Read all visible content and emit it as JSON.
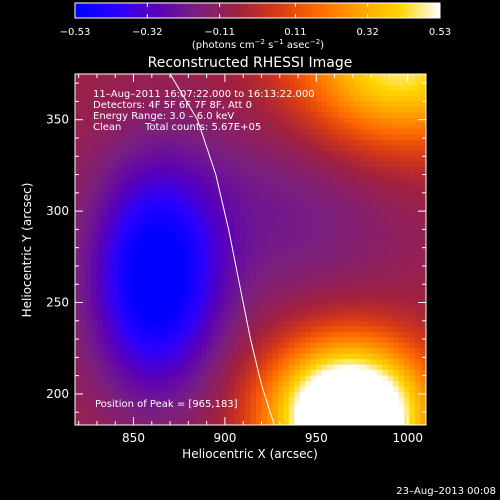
{
  "chart_data": {
    "type": "heatmap",
    "title": "Reconstructed RHESSI Image",
    "xlabel": "Heliocentric X (arcsec)",
    "ylabel": "Heliocentric Y (arcsec)",
    "xlim": [
      818,
      1010
    ],
    "ylim": [
      183,
      375
    ],
    "x_ticks": [
      850,
      900,
      950,
      1000
    ],
    "y_ticks": [
      200,
      250,
      300,
      350
    ],
    "colorbar": {
      "ticks": [
        -0.53,
        -0.32,
        -0.11,
        0.11,
        0.32,
        0.53
      ],
      "tick_labels": [
        "−0.53",
        "−0.32",
        "−0.11",
        "0.11",
        "0.32",
        "0.53"
      ],
      "label_parts": [
        "(photons cm",
        "−2",
        " s",
        "−1",
        " asec",
        "−2",
        ")"
      ],
      "stops": [
        "#0000ff",
        "#2a00ff",
        "#5a00b8",
        "#7a1f7f",
        "#a02040",
        "#d83a14",
        "#ff6a00",
        "#ffa200",
        "#ffd500",
        "#ffffff"
      ]
    },
    "annotations": [
      "11–Aug–2011 16:07:22.000 to 16:13:22.000",
      "Detectors: 4F 5F 6F 7F 8F, Att 0",
      "Energy Range: 3.0 – 6.0 keV",
      "Clean",
      "Total counts: 5.67E+05",
      "Position of Peak = [965,183]"
    ],
    "limb_curve": [
      [
        870,
        375
      ],
      [
        885,
        350
      ],
      [
        895,
        320
      ],
      [
        902,
        290
      ],
      [
        908,
        260
      ],
      [
        914,
        230
      ],
      [
        920,
        205
      ],
      [
        927,
        183
      ]
    ],
    "sources": [
      {
        "x": 862,
        "y": 262,
        "amplitude": -0.5,
        "sigma_x": 24,
        "sigma_y": 42
      },
      {
        "x": 968,
        "y": 188,
        "amplitude": 0.95,
        "sigma_x": 30,
        "sigma_y": 28
      },
      {
        "x": 995,
        "y": 380,
        "amplitude": 0.55,
        "sigma_x": 40,
        "sigma_y": 32
      },
      {
        "x": 930,
        "y": 300,
        "amplitude": -0.13,
        "sigma_x": 50,
        "sigma_y": 40
      }
    ],
    "background_value": -0.07,
    "value_min": -0.53,
    "value_max": 0.53
  },
  "footer": {
    "timestamp": "23–Aug–2013 00:08"
  }
}
